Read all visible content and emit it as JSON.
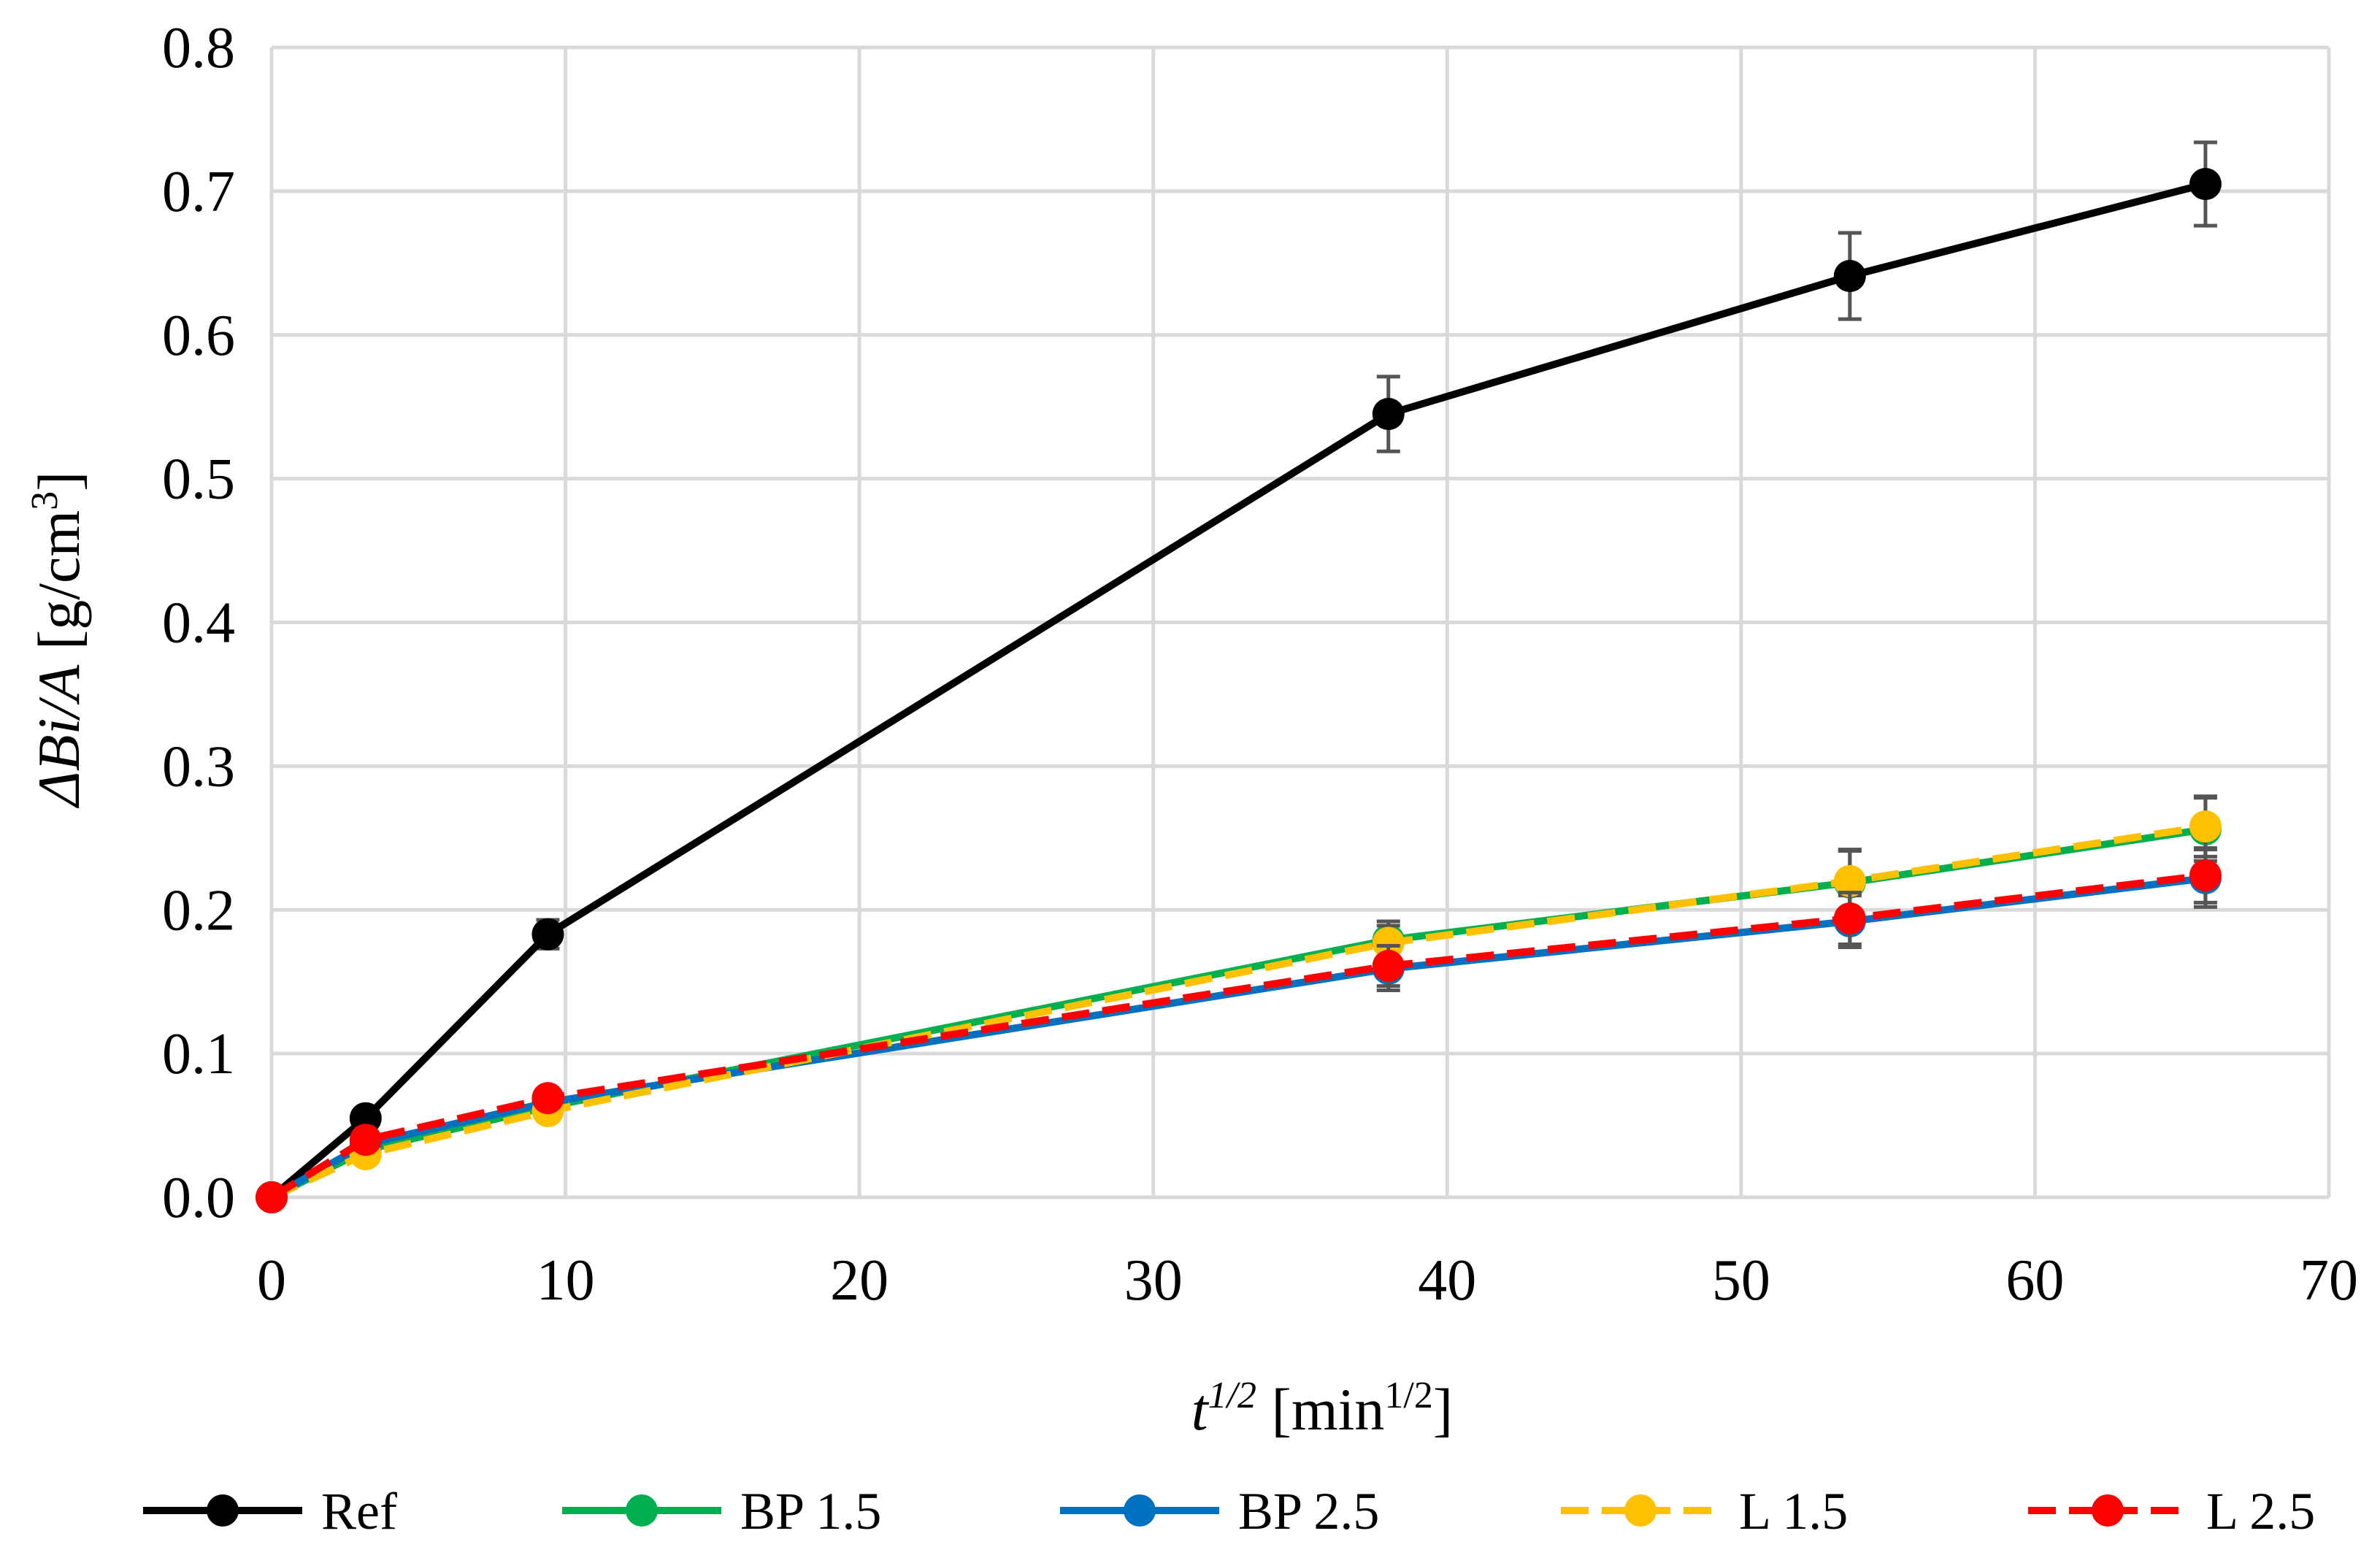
{
  "chart_data": {
    "type": "line",
    "title": "",
    "xlabel": {
      "var": "t",
      "exp": "1/2",
      "unit_pre": "[min",
      "unit_exp": "1/2",
      "unit_post": "]"
    },
    "ylabel": {
      "var": "ΔBi/A",
      "unit_pre": "[g/cm",
      "unit_exp": "3",
      "unit_post": "]"
    },
    "xlim": [
      0,
      70
    ],
    "ylim": [
      0,
      0.8
    ],
    "xticks": [
      "0",
      "10",
      "20",
      "30",
      "40",
      "50",
      "60",
      "70"
    ],
    "yticks": [
      "0.0",
      "0.1",
      "0.2",
      "0.3",
      "0.4",
      "0.5",
      "0.6",
      "0.7",
      "0.8"
    ],
    "grid": true,
    "legend_position": "bottom",
    "series": [
      {
        "name": "Ref",
        "color": "#000000",
        "dash": "solid",
        "x": [
          0,
          3.2,
          9.4,
          38,
          53.7,
          65.8
        ],
        "y": [
          0,
          0.055,
          0.183,
          0.545,
          0.641,
          0.705
        ],
        "err": [
          0,
          0,
          0.01,
          0.026,
          0.03,
          0.029
        ]
      },
      {
        "name": "BP 1.5",
        "color": "#00B050",
        "dash": "solid",
        "x": [
          0,
          3.2,
          9.4,
          38,
          53.7,
          65.8
        ],
        "y": [
          0,
          0.033,
          0.063,
          0.179,
          0.219,
          0.256
        ],
        "err": [
          0,
          0,
          0,
          0.013,
          0.022,
          0.022
        ]
      },
      {
        "name": "BP 2.5",
        "color": "#0070C0",
        "dash": "solid",
        "x": [
          0,
          3.2,
          9.4,
          38,
          53.7,
          65.8
        ],
        "y": [
          0,
          0.037,
          0.066,
          0.159,
          0.192,
          0.222
        ],
        "err": [
          0,
          0,
          0,
          0.015,
          0.018,
          0.02
        ]
      },
      {
        "name": "L 1.5",
        "color": "#FFC000",
        "dash": "dashed",
        "x": [
          0,
          3.2,
          9.4,
          38,
          53.7,
          65.8
        ],
        "y": [
          0,
          0.03,
          0.06,
          0.177,
          0.22,
          0.258
        ],
        "err": [
          0,
          0,
          0,
          0.012,
          0.022,
          0.021
        ]
      },
      {
        "name": "L 2.5",
        "color": "#FF0000",
        "dash": "dashed",
        "x": [
          0,
          3.2,
          9.4,
          38,
          53.7,
          65.8
        ],
        "y": [
          0,
          0.04,
          0.069,
          0.161,
          0.194,
          0.224
        ],
        "err": [
          0,
          0,
          0,
          0.014,
          0.018,
          0.019
        ]
      }
    ]
  }
}
